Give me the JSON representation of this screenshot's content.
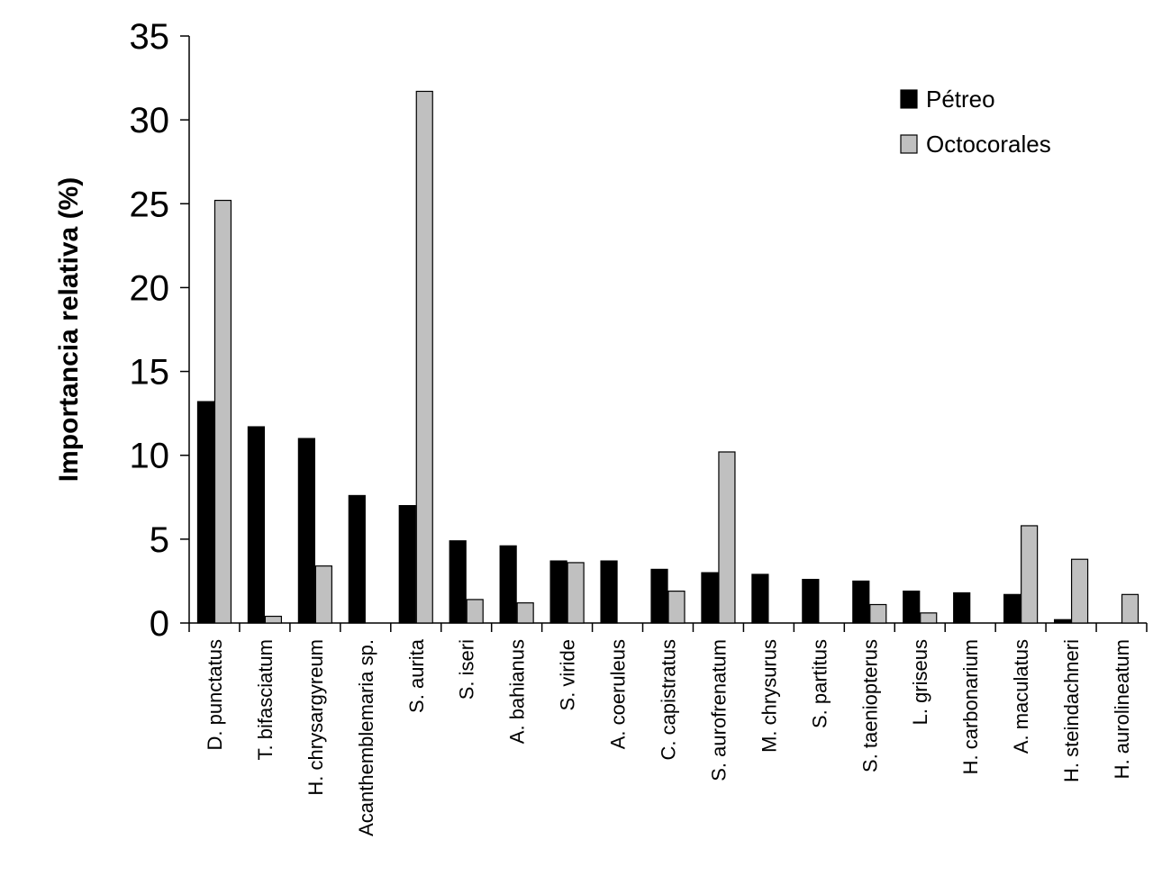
{
  "chart_data": {
    "type": "bar",
    "ylabel": "Importancia relativa (%)",
    "xlabel": "",
    "ylim": [
      0,
      35
    ],
    "yticks": [
      0,
      5,
      10,
      15,
      20,
      25,
      30,
      35
    ],
    "grid": false,
    "legend_position": "top-right",
    "categories": [
      "D. punctatus",
      "T. bifasciatum",
      "H. chrysargyreum",
      "Acanthemblemaria sp.",
      "S. aurita",
      "S. iseri",
      "A. bahianus",
      "S. viride",
      "A. coeruleus",
      "C. capistratus",
      "S. aurofrenatum",
      "M. chrysurus",
      "S. partitus",
      "S. taeniopterus",
      "L. griseus",
      "H. carbonarium",
      "A. maculatus",
      "H. steindachneri",
      "H. aurolineatum"
    ],
    "series": [
      {
        "name": "Pétreo",
        "color": "#000000",
        "values": [
          13.2,
          11.7,
          11.0,
          7.6,
          7.0,
          4.9,
          4.6,
          3.7,
          3.7,
          3.2,
          3.0,
          2.9,
          2.6,
          2.5,
          1.9,
          1.8,
          1.7,
          0.2,
          0
        ]
      },
      {
        "name": "Octocorales",
        "color": "#c0c0c0",
        "values": [
          25.2,
          0.4,
          3.4,
          0,
          31.7,
          1.4,
          1.2,
          3.6,
          0,
          1.9,
          10.2,
          0,
          0,
          1.1,
          0.6,
          0,
          5.8,
          3.8,
          1.7
        ]
      }
    ]
  }
}
